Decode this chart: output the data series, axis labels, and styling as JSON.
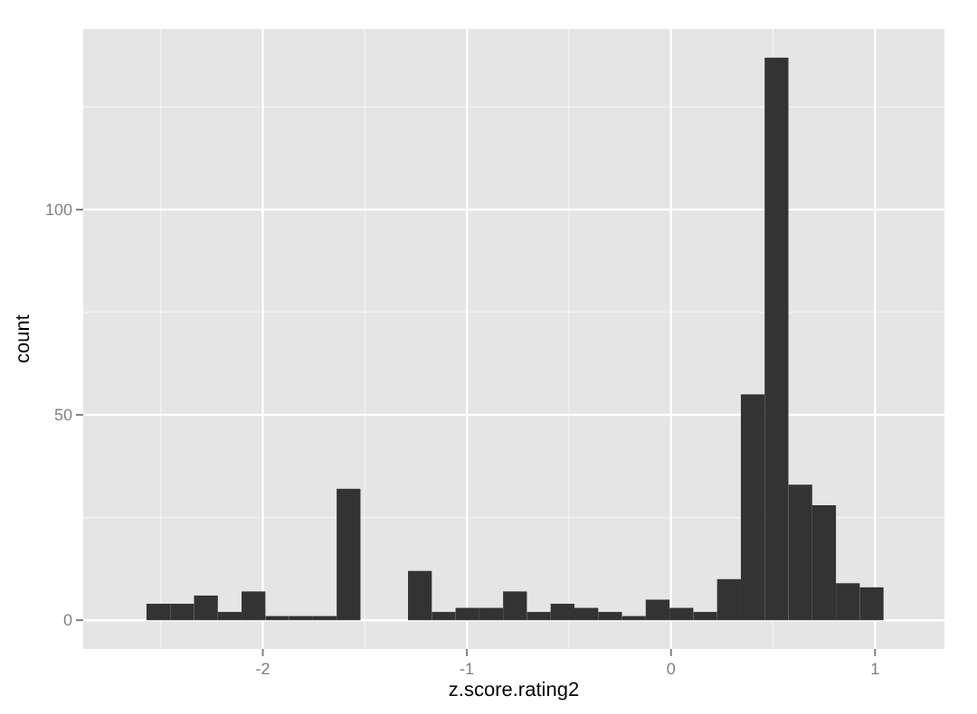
{
  "chart_data": {
    "type": "histogram",
    "xlabel": "z.score.rating2",
    "ylabel": "count",
    "bins": [
      -2.57,
      -2.4535,
      -2.337,
      -2.2205,
      -2.104,
      -1.9875,
      -1.871,
      -1.7545,
      -1.638,
      -1.5215,
      -1.405,
      -1.2885,
      -1.172,
      -1.0555,
      -0.939,
      -0.8225,
      -0.706,
      -0.5895,
      -0.473,
      -0.3565,
      -0.24,
      -0.1235,
      -0.007,
      0.1095,
      0.226,
      0.3425,
      0.459,
      0.5755,
      0.692,
      0.8085,
      0.925,
      1.0415
    ],
    "values": [
      4,
      4,
      6,
      2,
      7,
      1,
      1,
      1,
      32,
      0,
      0,
      12,
      2,
      3,
      3,
      7,
      2,
      4,
      3,
      2,
      1,
      5,
      3,
      2,
      10,
      55,
      137,
      33,
      28,
      9,
      8
    ],
    "color": "#333333",
    "xlim": [
      -2.88,
      1.34
    ],
    "ylim": [
      -7,
      144
    ],
    "xticks": [
      -2,
      -1,
      0,
      1
    ],
    "yticks": [
      0,
      50,
      100
    ],
    "grid": true
  }
}
